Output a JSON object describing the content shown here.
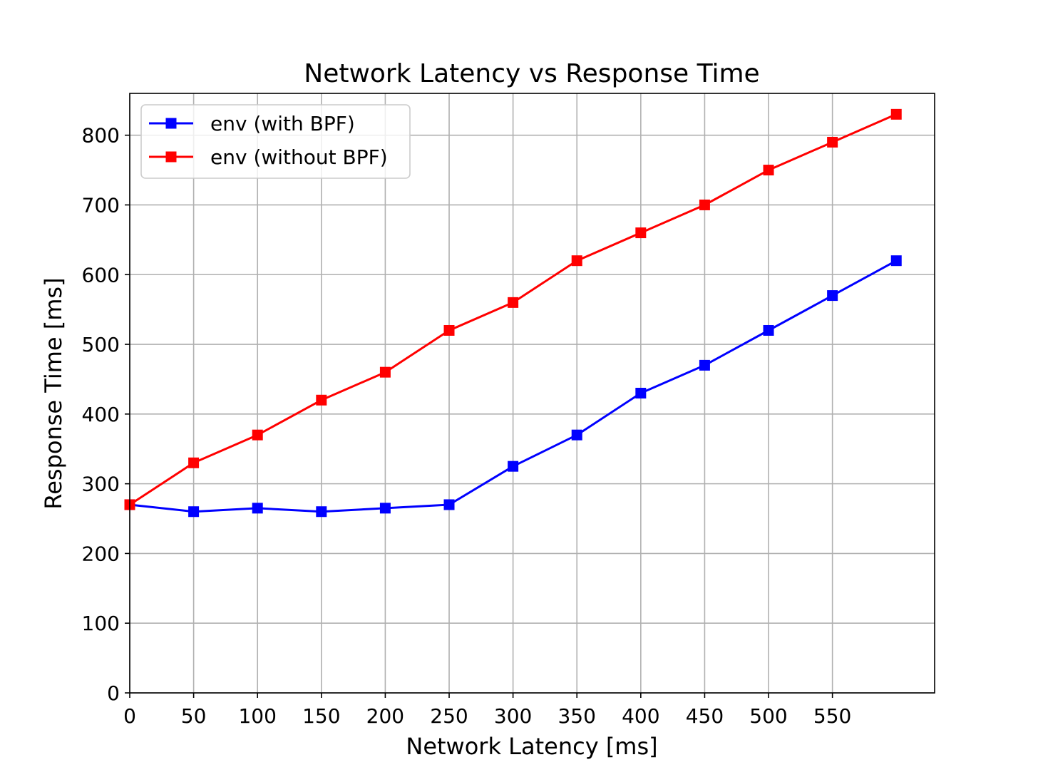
{
  "chart_data": {
    "type": "line",
    "title": "Network Latency vs Response Time",
    "xlabel": "Network Latency [ms]",
    "ylabel": "Response Time [ms]",
    "xlim": [
      0,
      630
    ],
    "ylim": [
      0,
      860
    ],
    "x_ticks": [
      0,
      50,
      100,
      150,
      200,
      250,
      300,
      350,
      400,
      450,
      500,
      550
    ],
    "x_tick_labels": [
      "0",
      "50",
      "100",
      "150",
      "200",
      "250",
      "300",
      "350",
      "400",
      "450",
      "500",
      "550"
    ],
    "y_ticks": [
      0,
      100,
      200,
      300,
      400,
      500,
      600,
      700,
      800
    ],
    "y_tick_labels": [
      "0",
      "100",
      "200",
      "300",
      "400",
      "500",
      "600",
      "700",
      "800"
    ],
    "grid": true,
    "legend_position": "upper-left",
    "x": [
      0,
      50,
      100,
      150,
      200,
      250,
      300,
      350,
      400,
      450,
      500,
      550,
      600
    ],
    "series": [
      {
        "name": "env (with BPF)",
        "color": "#0000ff",
        "marker": "square",
        "values": [
          270,
          260,
          265,
          260,
          265,
          270,
          325,
          370,
          430,
          470,
          520,
          570,
          620
        ]
      },
      {
        "name": "env (without BPF)",
        "color": "#ff0000",
        "marker": "square",
        "values": [
          270,
          330,
          370,
          420,
          460,
          520,
          560,
          620,
          660,
          700,
          750,
          790,
          830
        ]
      }
    ]
  }
}
